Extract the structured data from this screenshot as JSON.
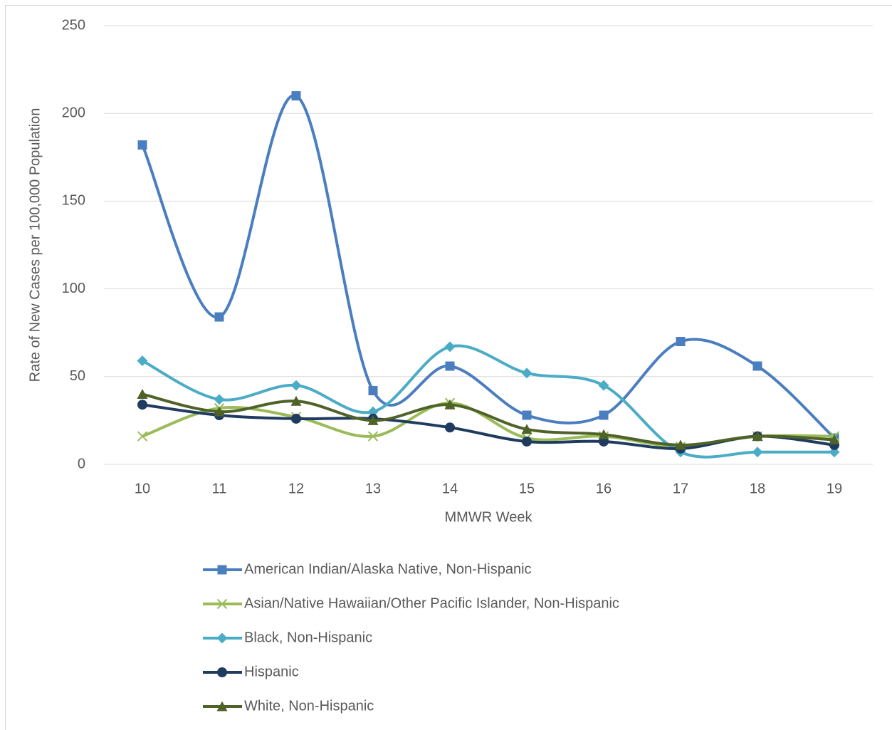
{
  "chart_data": {
    "type": "line",
    "smooth": true,
    "x_label": "MMWR Week",
    "y_label": "Rate of New Cases per 100,000 Population",
    "categories": [
      10,
      11,
      12,
      13,
      14,
      15,
      16,
      17,
      18,
      19
    ],
    "ylim": [
      0,
      250
    ],
    "yticks": [
      0,
      50,
      100,
      150,
      200,
      250
    ],
    "grid": true,
    "legend": "bottom",
    "series": [
      {
        "name": "American Indian/Alaska Native, Non-Hispanic",
        "color": "#4a7ebf",
        "marker": "square",
        "values": [
          182,
          84,
          210,
          42,
          56,
          28,
          28,
          70,
          56,
          15
        ]
      },
      {
        "name": "Asian/Native Hawaiian/Other Pacific Islander, Non-Hispanic",
        "color": "#9bbb59",
        "marker": "x",
        "values": [
          16,
          32,
          27,
          16,
          35,
          15,
          16,
          10,
          16,
          16
        ]
      },
      {
        "name": "Black, Non-Hispanic",
        "color": "#4bacc6",
        "marker": "diamond",
        "values": [
          59,
          37,
          45,
          30,
          67,
          52,
          45,
          7,
          7,
          7
        ]
      },
      {
        "name": "Hispanic",
        "color": "#1f3b5f",
        "marker": "circle",
        "values": [
          34,
          28,
          26,
          26,
          21,
          13,
          13,
          9,
          16,
          11
        ]
      },
      {
        "name": "White, Non-Hispanic",
        "color": "#4f6228",
        "marker": "triangle",
        "values": [
          40,
          30,
          36,
          25,
          34,
          20,
          17,
          11,
          16,
          14
        ]
      }
    ]
  }
}
